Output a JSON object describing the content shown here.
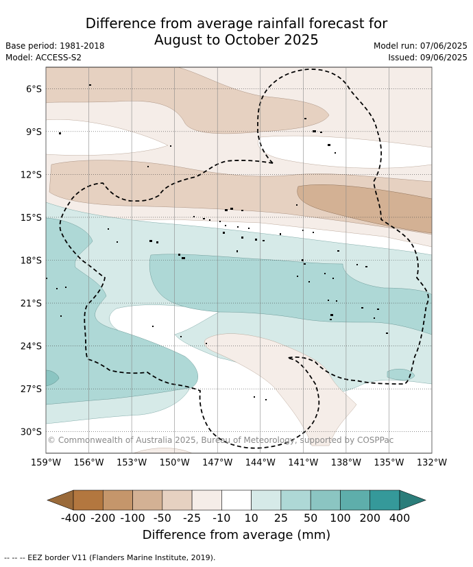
{
  "title_line1": "Difference from average rainfall forecast for",
  "title_line2": "August to October 2025",
  "base_period": "Base period: 1981-2018",
  "model": "Model: ACCESS-S2",
  "model_run": "Model run: 07/06/2025",
  "issued": "Issued: 09/06/2025",
  "copyright": "© Commonwealth of Australia 2025, Bureau of Meteorology, supported by COSPPac",
  "map": {
    "lon_range": [
      -159,
      -132
    ],
    "lat_range": [
      -31.5,
      -4.5
    ],
    "lat_ticks": [
      {
        "value": -6,
        "label": "6°S"
      },
      {
        "value": -9,
        "label": "9°S"
      },
      {
        "value": -12,
        "label": "12°S"
      },
      {
        "value": -15,
        "label": "15°S"
      },
      {
        "value": -18,
        "label": "18°S"
      },
      {
        "value": -21,
        "label": "21°S"
      },
      {
        "value": -24,
        "label": "24°S"
      },
      {
        "value": -27,
        "label": "27°S"
      },
      {
        "value": -30,
        "label": "30°S"
      }
    ],
    "lon_ticks": [
      {
        "value": -159,
        "label": "159°W"
      },
      {
        "value": -156,
        "label": "156°W"
      },
      {
        "value": -153,
        "label": "153°W"
      },
      {
        "value": -150,
        "label": "150°W"
      },
      {
        "value": -147,
        "label": "147°W"
      },
      {
        "value": -144,
        "label": "144°W"
      },
      {
        "value": -141,
        "label": "141°W"
      },
      {
        "value": -138,
        "label": "138°W"
      },
      {
        "value": -135,
        "label": "135°W"
      },
      {
        "value": -132,
        "label": "132°W"
      }
    ],
    "gridlines": true,
    "colors": {
      "dry_neg25": "#f5ede8",
      "dry_neg50": "#e6d1c1",
      "dry_neg100": "#d3b194",
      "wet_10": "#d6eae8",
      "wet_25": "#aed8d6",
      "wet_50": "#8bc5c2",
      "eez": "#000000",
      "land": "#000000"
    }
  },
  "colorbar": {
    "title": "Difference from average (mm)",
    "labels": [
      "-400",
      "-200",
      "-100",
      "-50",
      "-25",
      "-10",
      "10",
      "25",
      "50",
      "100",
      "200",
      "400"
    ],
    "colors": [
      "#9a6a3a",
      "#b3773f",
      "#c5966b",
      "#d3b194",
      "#e6d1c1",
      "#f5ede8",
      "#ffffff",
      "#d6eae8",
      "#aed8d6",
      "#8bc5c2",
      "#5eaeab",
      "#35999a",
      "#2b7d7a"
    ]
  },
  "legend_footer": "-- -- -- EEZ border V11 (Flanders Marine Institute, 2019)."
}
